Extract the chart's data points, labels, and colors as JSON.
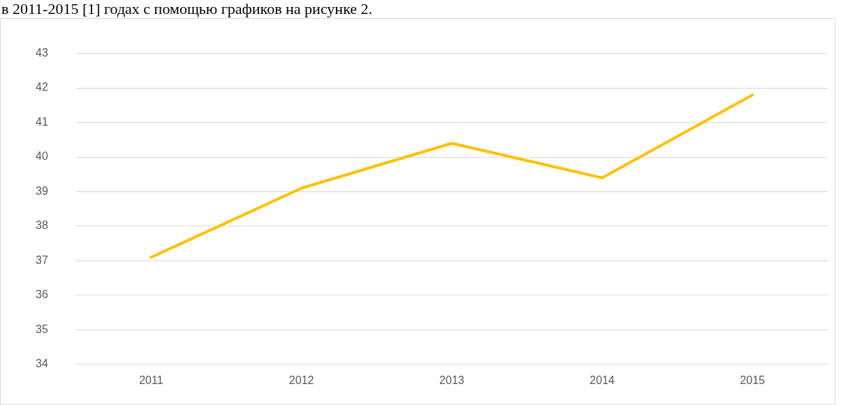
{
  "chart_data": {
    "type": "line",
    "categories": [
      "2011",
      "2012",
      "2013",
      "2014",
      "2015"
    ],
    "values": [
      37.1,
      39.1,
      40.4,
      39.4,
      41.8
    ],
    "color": "#ffc000",
    "ylim": [
      34,
      43
    ],
    "yticks": [
      34,
      35,
      36,
      37,
      38,
      39,
      40,
      41,
      42,
      43
    ],
    "grid": "y",
    "legend": false,
    "marker": "none",
    "annotations": [
      "в 2011-2015 [1] годах с помощью графиков на рисунке 2."
    ]
  }
}
